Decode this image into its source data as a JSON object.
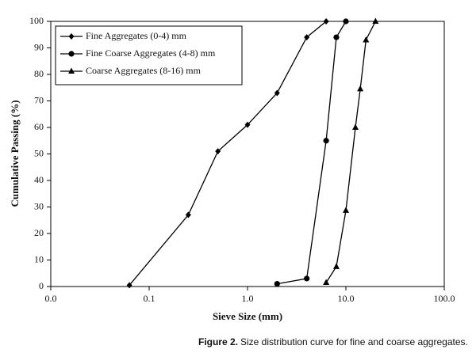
{
  "chart_data": {
    "type": "line",
    "x_label": "Sieve Size (mm)",
    "y_label": "Cumulative Passing (%)",
    "caption_label": "Figure 2.",
    "caption": "Size distribution curve for fine and coarse aggregates.",
    "xscale": "log",
    "xlim": [
      0.01,
      100
    ],
    "ylim": [
      0,
      100
    ],
    "xticks": [
      {
        "value": 0.01,
        "label": "0.0"
      },
      {
        "value": 0.1,
        "label": "0.1"
      },
      {
        "value": 1,
        "label": "1.0"
      },
      {
        "value": 10,
        "label": "10.0"
      },
      {
        "value": 100,
        "label": "100.0"
      }
    ],
    "yticks": [
      0,
      10,
      20,
      30,
      40,
      50,
      60,
      70,
      80,
      90,
      100
    ],
    "legend": "upper left",
    "series": [
      {
        "name": "Fine Aggregates (0-4) mm",
        "color": "#000000",
        "marker": "diamond",
        "x": [
          0.063,
          0.25,
          0.5,
          1,
          2,
          4,
          6.3
        ],
        "values": [
          0.5,
          27,
          51,
          61,
          73,
          94,
          100
        ]
      },
      {
        "name": "Fine Coarse Aggregates (4-8) mm",
        "color": "#000000",
        "marker": "circle",
        "x": [
          2,
          4,
          6.3,
          8,
          10
        ],
        "values": [
          1,
          3,
          55,
          94,
          100
        ]
      },
      {
        "name": "Coarse Aggregates (8-16) mm",
        "color": "#000000",
        "marker": "triangle",
        "x": [
          6.3,
          8,
          10,
          12.5,
          14,
          16,
          20
        ],
        "values": [
          1.5,
          7.5,
          28.7,
          60,
          74.5,
          93,
          100
        ]
      }
    ]
  }
}
